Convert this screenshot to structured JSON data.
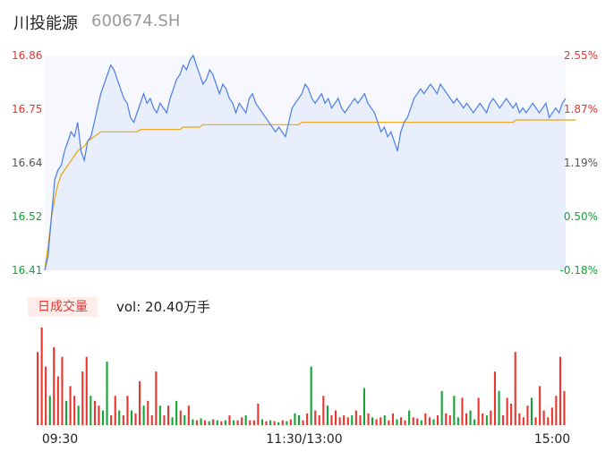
{
  "header": {
    "name": "川投能源",
    "code": "600674.SH"
  },
  "colors": {
    "up": "#e8352e",
    "down": "#13a535",
    "price_line": "#4a7de8",
    "avg_line": "#f0a30a"
  },
  "volume": {
    "badge": "日成交量",
    "label": "vol: 20.40万手"
  },
  "chart_data": {
    "type": "line",
    "series": [
      {
        "values": [
          16.41,
          16.44,
          16.52,
          16.6,
          16.62,
          16.63,
          16.66,
          16.68,
          16.7,
          16.69,
          16.72,
          16.66,
          16.64,
          16.68,
          16.69,
          16.72,
          16.75,
          16.78,
          16.8,
          16.82,
          16.84,
          16.83,
          16.81,
          16.79,
          16.77,
          16.76,
          16.73,
          16.72,
          16.74,
          16.76,
          16.78,
          16.76,
          16.77,
          16.75,
          16.74,
          16.76,
          16.75,
          16.74,
          16.77,
          16.79,
          16.81,
          16.82,
          16.84,
          16.83,
          16.85,
          16.86,
          16.84,
          16.82,
          16.8,
          16.81,
          16.83,
          16.82,
          16.8,
          16.78,
          16.8,
          16.79,
          16.77,
          16.76,
          16.74,
          16.76,
          16.75,
          16.74,
          16.77,
          16.78,
          16.76,
          16.75,
          16.74,
          16.73,
          16.72,
          16.71,
          16.7,
          16.71,
          16.7,
          16.69,
          16.72,
          16.75,
          16.76,
          16.77,
          16.78,
          16.8,
          16.79,
          16.77,
          16.76,
          16.77,
          16.78,
          16.76,
          16.77,
          16.75,
          16.76,
          16.77,
          16.75,
          16.74,
          16.75,
          16.76,
          16.77,
          16.76,
          16.77,
          16.78,
          16.76,
          16.75,
          16.74,
          16.72,
          16.7,
          16.71,
          16.69,
          16.7,
          16.68,
          16.66,
          16.7,
          16.72,
          16.73,
          16.75,
          16.77,
          16.78,
          16.79,
          16.78,
          16.79,
          16.8,
          16.79,
          16.78,
          16.8,
          16.79,
          16.78,
          16.77,
          16.76,
          16.77,
          16.76,
          16.75,
          16.76,
          16.75,
          16.74,
          16.75,
          16.76,
          16.75,
          16.74,
          16.76,
          16.77,
          16.76,
          16.75,
          16.76,
          16.77,
          16.76,
          16.75,
          16.76,
          16.74,
          16.75,
          16.74,
          16.75,
          16.76,
          16.75,
          16.74,
          16.75,
          16.76,
          16.73,
          16.74,
          16.75,
          16.74,
          16.76,
          16.77
        ]
      },
      {
        "values": [
          16.41,
          16.46,
          16.52,
          16.56,
          16.59,
          16.61,
          16.62,
          16.63,
          16.64,
          16.65,
          16.66,
          16.665,
          16.67,
          16.68,
          16.685,
          16.69,
          16.695,
          16.7,
          16.7,
          16.7,
          16.7,
          16.7,
          16.7,
          16.7,
          16.7,
          16.7,
          16.7,
          16.7,
          16.7,
          16.705,
          16.705,
          16.705,
          16.705,
          16.705,
          16.705,
          16.705,
          16.705,
          16.705,
          16.705,
          16.705,
          16.705,
          16.705,
          16.71,
          16.71,
          16.71,
          16.71,
          16.71,
          16.71,
          16.715,
          16.715,
          16.715,
          16.715,
          16.715,
          16.715,
          16.715,
          16.715,
          16.715,
          16.715,
          16.715,
          16.715,
          16.715,
          16.715,
          16.715,
          16.715,
          16.715,
          16.715,
          16.715,
          16.715,
          16.715,
          16.715,
          16.715,
          16.715,
          16.715,
          16.715,
          16.715,
          16.715,
          16.715,
          16.715,
          16.72,
          16.72,
          16.72,
          16.72,
          16.72,
          16.72,
          16.72,
          16.72,
          16.72,
          16.72,
          16.72,
          16.72,
          16.72,
          16.72,
          16.72,
          16.72,
          16.72,
          16.72,
          16.72,
          16.72,
          16.72,
          16.72,
          16.72,
          16.72,
          16.72,
          16.72,
          16.72,
          16.72,
          16.72,
          16.72,
          16.72,
          16.72,
          16.72,
          16.72,
          16.72,
          16.72,
          16.72,
          16.72,
          16.72,
          16.72,
          16.72,
          16.72,
          16.72,
          16.72,
          16.72,
          16.72,
          16.72,
          16.72,
          16.72,
          16.72,
          16.72,
          16.72,
          16.72,
          16.72,
          16.72,
          16.72,
          16.72,
          16.72,
          16.72,
          16.72,
          16.72,
          16.72,
          16.72,
          16.72,
          16.72,
          16.725,
          16.725,
          16.725,
          16.725,
          16.725,
          16.725,
          16.725,
          16.725,
          16.725,
          16.725,
          16.725,
          16.725,
          16.725,
          16.725,
          16.725,
          16.725,
          16.725,
          16.725,
          16.725
        ]
      }
    ],
    "ylim": [
      16.41,
      16.86
    ],
    "y_ticks": [
      "16.86",
      "16.75",
      "16.64",
      "16.52",
      "16.41"
    ],
    "pct_ticks": [
      "2.55%",
      "1.87%",
      "1.19%",
      "0.50%",
      "-0.18%"
    ],
    "x_ticks": [
      "09:30",
      "11:30/13:00",
      "15:00"
    ],
    "volume_bars": [
      {
        "v": 0.75,
        "d": "up"
      },
      {
        "v": 1.0,
        "d": "up"
      },
      {
        "v": 0.6,
        "d": "up"
      },
      {
        "v": 0.3,
        "d": "down"
      },
      {
        "v": 0.8,
        "d": "up"
      },
      {
        "v": 0.5,
        "d": "up"
      },
      {
        "v": 0.7,
        "d": "up"
      },
      {
        "v": 0.25,
        "d": "down"
      },
      {
        "v": 0.4,
        "d": "up"
      },
      {
        "v": 0.3,
        "d": "up"
      },
      {
        "v": 0.2,
        "d": "down"
      },
      {
        "v": 0.55,
        "d": "up"
      },
      {
        "v": 0.7,
        "d": "up"
      },
      {
        "v": 0.3,
        "d": "down"
      },
      {
        "v": 0.25,
        "d": "up"
      },
      {
        "v": 0.2,
        "d": "up"
      },
      {
        "v": 0.15,
        "d": "down"
      },
      {
        "v": 0.65,
        "d": "down"
      },
      {
        "v": 0.1,
        "d": "up"
      },
      {
        "v": 0.3,
        "d": "up"
      },
      {
        "v": 0.15,
        "d": "down"
      },
      {
        "v": 0.1,
        "d": "up"
      },
      {
        "v": 0.3,
        "d": "up"
      },
      {
        "v": 0.15,
        "d": "down"
      },
      {
        "v": 0.12,
        "d": "up"
      },
      {
        "v": 0.45,
        "d": "up"
      },
      {
        "v": 0.2,
        "d": "down"
      },
      {
        "v": 0.25,
        "d": "up"
      },
      {
        "v": 0.1,
        "d": "up"
      },
      {
        "v": 0.55,
        "d": "up"
      },
      {
        "v": 0.2,
        "d": "down"
      },
      {
        "v": 0.1,
        "d": "up"
      },
      {
        "v": 0.2,
        "d": "up"
      },
      {
        "v": 0.08,
        "d": "down"
      },
      {
        "v": 0.25,
        "d": "down"
      },
      {
        "v": 0.15,
        "d": "up"
      },
      {
        "v": 0.1,
        "d": "down"
      },
      {
        "v": 0.2,
        "d": "up"
      },
      {
        "v": 0.06,
        "d": "down"
      },
      {
        "v": 0.05,
        "d": "up"
      },
      {
        "v": 0.07,
        "d": "down"
      },
      {
        "v": 0.05,
        "d": "up"
      },
      {
        "v": 0.04,
        "d": "down"
      },
      {
        "v": 0.06,
        "d": "up"
      },
      {
        "v": 0.05,
        "d": "down"
      },
      {
        "v": 0.04,
        "d": "up"
      },
      {
        "v": 0.05,
        "d": "down"
      },
      {
        "v": 0.1,
        "d": "up"
      },
      {
        "v": 0.05,
        "d": "down"
      },
      {
        "v": 0.05,
        "d": "up"
      },
      {
        "v": 0.08,
        "d": "up"
      },
      {
        "v": 0.1,
        "d": "down"
      },
      {
        "v": 0.05,
        "d": "up"
      },
      {
        "v": 0.05,
        "d": "up"
      },
      {
        "v": 0.22,
        "d": "up"
      },
      {
        "v": 0.06,
        "d": "down"
      },
      {
        "v": 0.04,
        "d": "up"
      },
      {
        "v": 0.05,
        "d": "down"
      },
      {
        "v": 0.04,
        "d": "up"
      },
      {
        "v": 0.03,
        "d": "down"
      },
      {
        "v": 0.05,
        "d": "up"
      },
      {
        "v": 0.04,
        "d": "down"
      },
      {
        "v": 0.06,
        "d": "up"
      },
      {
        "v": 0.12,
        "d": "down"
      },
      {
        "v": 0.1,
        "d": "down"
      },
      {
        "v": 0.05,
        "d": "up"
      },
      {
        "v": 0.12,
        "d": "up"
      },
      {
        "v": 0.6,
        "d": "down"
      },
      {
        "v": 0.15,
        "d": "up"
      },
      {
        "v": 0.1,
        "d": "up"
      },
      {
        "v": 0.3,
        "d": "up"
      },
      {
        "v": 0.2,
        "d": "down"
      },
      {
        "v": 0.1,
        "d": "up"
      },
      {
        "v": 0.15,
        "d": "up"
      },
      {
        "v": 0.08,
        "d": "up"
      },
      {
        "v": 0.1,
        "d": "up"
      },
      {
        "v": 0.08,
        "d": "up"
      },
      {
        "v": 0.1,
        "d": "down"
      },
      {
        "v": 0.15,
        "d": "up"
      },
      {
        "v": 0.1,
        "d": "up"
      },
      {
        "v": 0.38,
        "d": "down"
      },
      {
        "v": 0.12,
        "d": "up"
      },
      {
        "v": 0.08,
        "d": "down"
      },
      {
        "v": 0.06,
        "d": "up"
      },
      {
        "v": 0.08,
        "d": "up"
      },
      {
        "v": 0.1,
        "d": "down"
      },
      {
        "v": 0.05,
        "d": "up"
      },
      {
        "v": 0.12,
        "d": "up"
      },
      {
        "v": 0.06,
        "d": "down"
      },
      {
        "v": 0.08,
        "d": "up"
      },
      {
        "v": 0.05,
        "d": "up"
      },
      {
        "v": 0.15,
        "d": "down"
      },
      {
        "v": 0.08,
        "d": "up"
      },
      {
        "v": 0.07,
        "d": "up"
      },
      {
        "v": 0.05,
        "d": "down"
      },
      {
        "v": 0.12,
        "d": "up"
      },
      {
        "v": 0.08,
        "d": "up"
      },
      {
        "v": 0.06,
        "d": "down"
      },
      {
        "v": 0.1,
        "d": "up"
      },
      {
        "v": 0.35,
        "d": "down"
      },
      {
        "v": 0.12,
        "d": "up"
      },
      {
        "v": 0.1,
        "d": "up"
      },
      {
        "v": 0.3,
        "d": "down"
      },
      {
        "v": 0.08,
        "d": "down"
      },
      {
        "v": 0.28,
        "d": "up"
      },
      {
        "v": 0.12,
        "d": "up"
      },
      {
        "v": 0.15,
        "d": "down"
      },
      {
        "v": 0.06,
        "d": "down"
      },
      {
        "v": 0.28,
        "d": "up"
      },
      {
        "v": 0.12,
        "d": "up"
      },
      {
        "v": 0.1,
        "d": "down"
      },
      {
        "v": 0.15,
        "d": "up"
      },
      {
        "v": 0.55,
        "d": "up"
      },
      {
        "v": 0.35,
        "d": "down"
      },
      {
        "v": 0.1,
        "d": "up"
      },
      {
        "v": 0.28,
        "d": "up"
      },
      {
        "v": 0.22,
        "d": "up"
      },
      {
        "v": 0.75,
        "d": "up"
      },
      {
        "v": 0.12,
        "d": "up"
      },
      {
        "v": 0.08,
        "d": "up"
      },
      {
        "v": 0.2,
        "d": "up"
      },
      {
        "v": 0.28,
        "d": "down"
      },
      {
        "v": 0.08,
        "d": "up"
      },
      {
        "v": 0.4,
        "d": "up"
      },
      {
        "v": 0.15,
        "d": "up"
      },
      {
        "v": 0.08,
        "d": "up"
      },
      {
        "v": 0.18,
        "d": "up"
      },
      {
        "v": 0.3,
        "d": "up"
      },
      {
        "v": 0.7,
        "d": "up"
      },
      {
        "v": 0.35,
        "d": "up"
      }
    ]
  }
}
